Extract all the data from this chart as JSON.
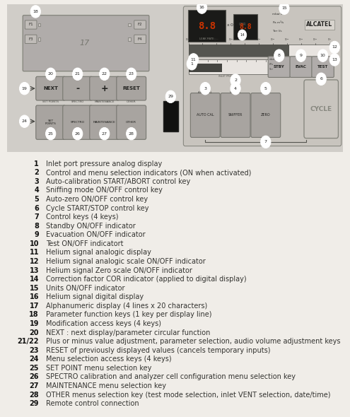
{
  "bg_color": "#f0ede8",
  "legend_entries": [
    [
      "1",
      "Inlet port pressure analog display"
    ],
    [
      "2",
      "Control and menu selection indicators (ON when activated)"
    ],
    [
      "3",
      "Auto-calibration START/ABORT control key"
    ],
    [
      "4",
      "Sniffing mode ON/OFF control key"
    ],
    [
      "5",
      "Auto-zero ON/OFF control key"
    ],
    [
      "6",
      "Cycle START/STOP control key"
    ],
    [
      "7",
      "Control keys (4 keys)"
    ],
    [
      "8",
      "Standby ON/OFF indicator"
    ],
    [
      "9",
      "Evacuation ON/OFF indicator"
    ],
    [
      "10",
      "Test ON/OFF indicatort"
    ],
    [
      "11",
      "Helium signal analogic display"
    ],
    [
      "12",
      "Helium signal analogic scale ON/OFF indicator"
    ],
    [
      "13",
      "Helium signal Zero scale ON/OFF indicator"
    ],
    [
      "14",
      "Correction factor COR indicator (applied to digital display)"
    ],
    [
      "15",
      "Units ON/OFF indicator"
    ],
    [
      "16",
      "Helium signal digital display"
    ],
    [
      "17",
      "Alphanumeric display (4 lines x 20 characters)"
    ],
    [
      "18",
      "Parameter function keys (1 key per display line)"
    ],
    [
      "19",
      "Modification access keys (4 keys)"
    ],
    [
      "20",
      "NEXT : next display/parameter circular function"
    ],
    [
      "21/22",
      "Plus or minus value adjustment, parameter selection, audio volume adjustment keys"
    ],
    [
      "23",
      "RESET of previously displayed values (cancels temporary inputs)"
    ],
    [
      "24",
      "Menu selection access keys (4 keys)"
    ],
    [
      "25",
      "SET POINT menu selection key"
    ],
    [
      "26",
      "SPECTRO calibration and analyzer cell configuration menu selection key"
    ],
    [
      "27",
      "MAINTENANCE menu selection key"
    ],
    [
      "28",
      "OTHER menus selection key (test mode selection, inlet VENT selection, date/time)"
    ],
    [
      "29",
      "Remote control connection"
    ]
  ]
}
